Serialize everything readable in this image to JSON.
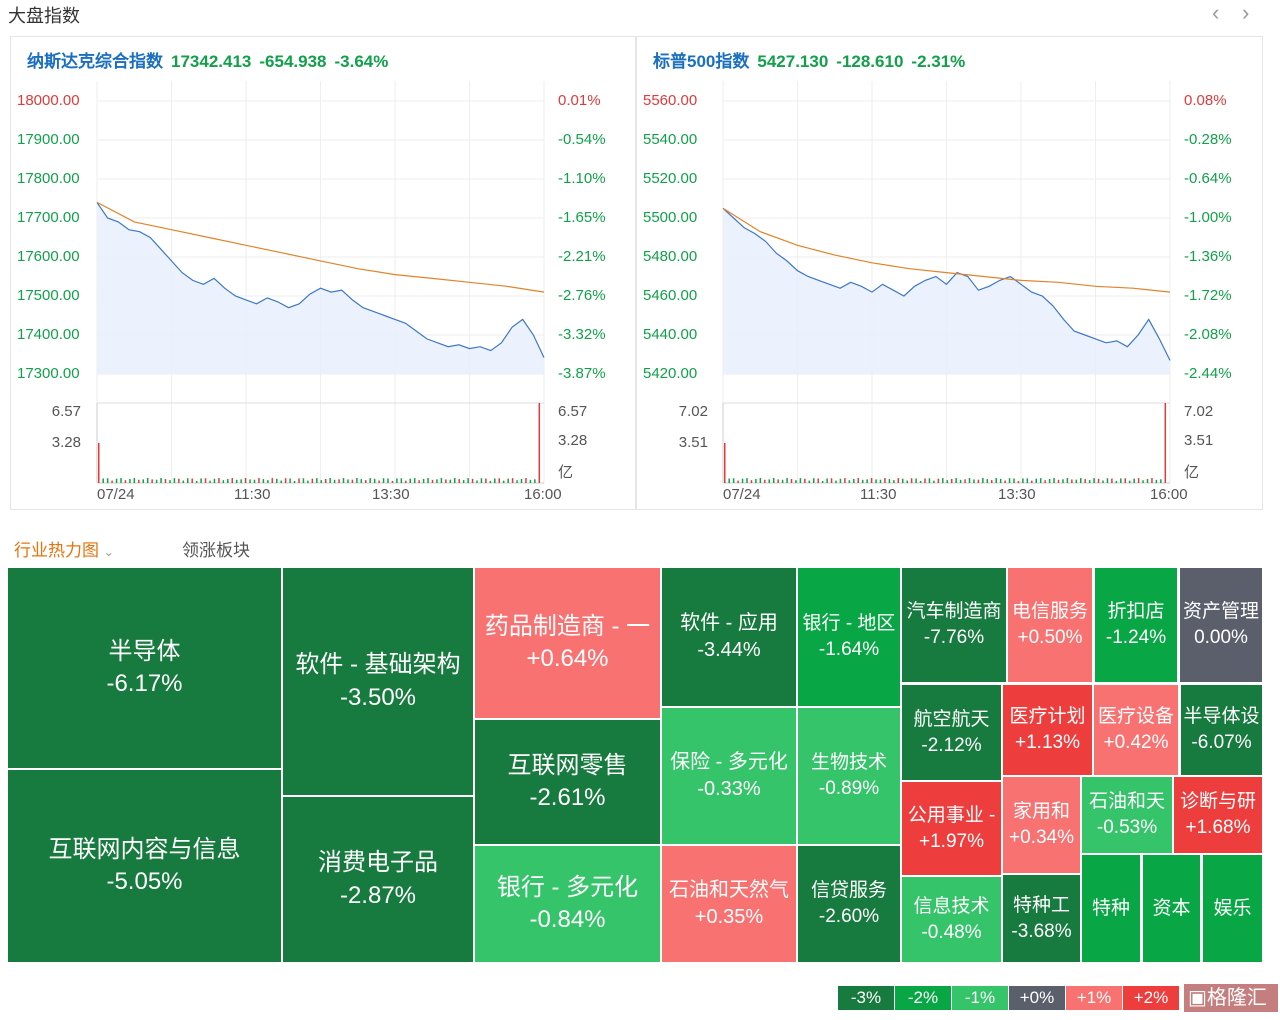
{
  "header": {
    "title": "大盘指数",
    "prev_icon": "chevron-left",
    "next_icon": "chevron-right"
  },
  "panels": [
    {
      "name": "纳斯达克综合指数",
      "price": "17342.413",
      "change": "-654.938",
      "pct": "-3.64%",
      "left_axis": [
        "18000.00",
        "17900.00",
        "17800.00",
        "17700.00",
        "17600.00",
        "17500.00",
        "17400.00",
        "17300.00"
      ],
      "right_axis": [
        "0.01%",
        "-0.54%",
        "-1.10%",
        "-1.65%",
        "-2.21%",
        "-2.76%",
        "-3.32%",
        "-3.87%"
      ],
      "vol_left": [
        "6.57",
        "3.28"
      ],
      "vol_right": [
        "6.57",
        "3.28",
        "亿"
      ],
      "x_labels": [
        "07/24",
        "11:30",
        "13:30",
        "16:00"
      ],
      "ymin": 17300,
      "ymax": 18000,
      "price_series": [
        17740,
        17700,
        17690,
        17670,
        17665,
        17650,
        17620,
        17590,
        17560,
        17540,
        17530,
        17545,
        17520,
        17500,
        17490,
        17480,
        17495,
        17485,
        17470,
        17480,
        17505,
        17520,
        17510,
        17515,
        17490,
        17470,
        17460,
        17450,
        17440,
        17430,
        17410,
        17390,
        17380,
        17370,
        17375,
        17365,
        17370,
        17360,
        17380,
        17420,
        17440,
        17400,
        17342
      ],
      "avg_series": [
        17740,
        17690,
        17670,
        17650,
        17630,
        17610,
        17590,
        17570,
        17555,
        17545,
        17535,
        17525,
        17510
      ]
    },
    {
      "name": "标普500指数",
      "price": "5427.130",
      "change": "-128.610",
      "pct": "-2.31%",
      "left_axis": [
        "5560.00",
        "5540.00",
        "5520.00",
        "5500.00",
        "5480.00",
        "5460.00",
        "5440.00",
        "5420.00"
      ],
      "right_axis": [
        "0.08%",
        "-0.28%",
        "-0.64%",
        "-1.00%",
        "-1.36%",
        "-1.72%",
        "-2.08%",
        "-2.44%"
      ],
      "vol_left": [
        "7.02",
        "3.51"
      ],
      "vol_right": [
        "7.02",
        "3.51",
        "亿"
      ],
      "x_labels": [
        "07/24",
        "11:30",
        "13:30",
        "16:00"
      ],
      "ymin": 5420,
      "ymax": 5560,
      "price_series": [
        5505,
        5500,
        5495,
        5492,
        5488,
        5482,
        5478,
        5473,
        5470,
        5468,
        5466,
        5464,
        5467,
        5465,
        5462,
        5466,
        5463,
        5460,
        5465,
        5468,
        5470,
        5466,
        5472,
        5470,
        5463,
        5465,
        5468,
        5470,
        5466,
        5462,
        5460,
        5455,
        5448,
        5442,
        5440,
        5438,
        5436,
        5437,
        5434,
        5440,
        5448,
        5438,
        5427
      ],
      "avg_series": [
        5505,
        5493,
        5486,
        5481,
        5477,
        5474,
        5472,
        5470,
        5468,
        5467,
        5465,
        5464,
        5462
      ]
    }
  ],
  "tabs": [
    "行业热力图",
    "领涨板块"
  ],
  "tab_dropdown_icon": "chevron-down",
  "treemap": [
    {
      "label": "半导体",
      "pct": "-6.17%",
      "c": "dk"
    },
    {
      "label": "互联网内容与信息",
      "pct": "-5.05%",
      "c": "dk"
    },
    {
      "label": "软件 - 基础架构",
      "pct": "-3.50%",
      "c": "dk"
    },
    {
      "label": "消费电子品",
      "pct": "-2.87%",
      "c": "dk"
    },
    {
      "label": "药品制造商 - 一",
      "pct": "+0.64%",
      "c": "lr"
    },
    {
      "label": "互联网零售",
      "pct": "-2.61%",
      "c": "dk"
    },
    {
      "label": "银行 - 多元化",
      "pct": "-0.84%",
      "c": "lg"
    },
    {
      "label": "软件 - 应用",
      "pct": "-3.44%",
      "c": "dk"
    },
    {
      "label": "保险 - 多元化",
      "pct": "-0.33%",
      "c": "lg"
    },
    {
      "label": "石油和天然气",
      "pct": "+0.35%",
      "c": "lr"
    },
    {
      "label": "银行 - 地区",
      "pct": "-1.64%",
      "c": "g"
    },
    {
      "label": "生物技术",
      "pct": "-0.89%",
      "c": "lg"
    },
    {
      "label": "信贷服务",
      "pct": "-2.60%",
      "c": "dk"
    },
    {
      "label": "汽车制造商",
      "pct": "-7.76%",
      "c": "dk"
    },
    {
      "label": "电信服务",
      "pct": "+0.50%",
      "c": "lr"
    },
    {
      "label": "折扣店",
      "pct": "-1.24%",
      "c": "g"
    },
    {
      "label": "资产管理",
      "pct": "0.00%",
      "c": "gr"
    },
    {
      "label": "航空航天",
      "pct": "-2.12%",
      "c": "dk"
    },
    {
      "label": "医疗计划",
      "pct": "+1.13%",
      "c": "r"
    },
    {
      "label": "医疗设备",
      "pct": "+0.42%",
      "c": "lr"
    },
    {
      "label": "半导体设",
      "pct": "-6.07%",
      "c": "dk"
    },
    {
      "label": "公用事业 -",
      "pct": "+1.97%",
      "c": "r"
    },
    {
      "label": "家用和",
      "pct": "+0.34%",
      "c": "lr"
    },
    {
      "label": "石油和天",
      "pct": "-0.53%",
      "c": "lg"
    },
    {
      "label": "诊断与研",
      "pct": "+1.68%",
      "c": "r"
    },
    {
      "label": "信息技术",
      "pct": "-0.48%",
      "c": "lg"
    },
    {
      "label": "特种工",
      "pct": "-3.68%",
      "c": "dk"
    },
    {
      "label": "特种",
      "pct": "",
      "c": "g"
    },
    {
      "label": "资本",
      "pct": "",
      "c": "g"
    },
    {
      "label": "娱乐",
      "pct": "",
      "c": "g"
    }
  ],
  "legend": [
    {
      "label": "-3%",
      "color": "#177a3e"
    },
    {
      "label": "-2%",
      "color": "#08a645"
    },
    {
      "label": "-1%",
      "color": "#35c46a"
    },
    {
      "label": "+0%",
      "color": "#5a5f6b"
    },
    {
      "label": "+1%",
      "color": "#f87272"
    },
    {
      "label": "+2%",
      "color": "#ee3d3d"
    }
  ],
  "watermark": "格隆汇"
}
